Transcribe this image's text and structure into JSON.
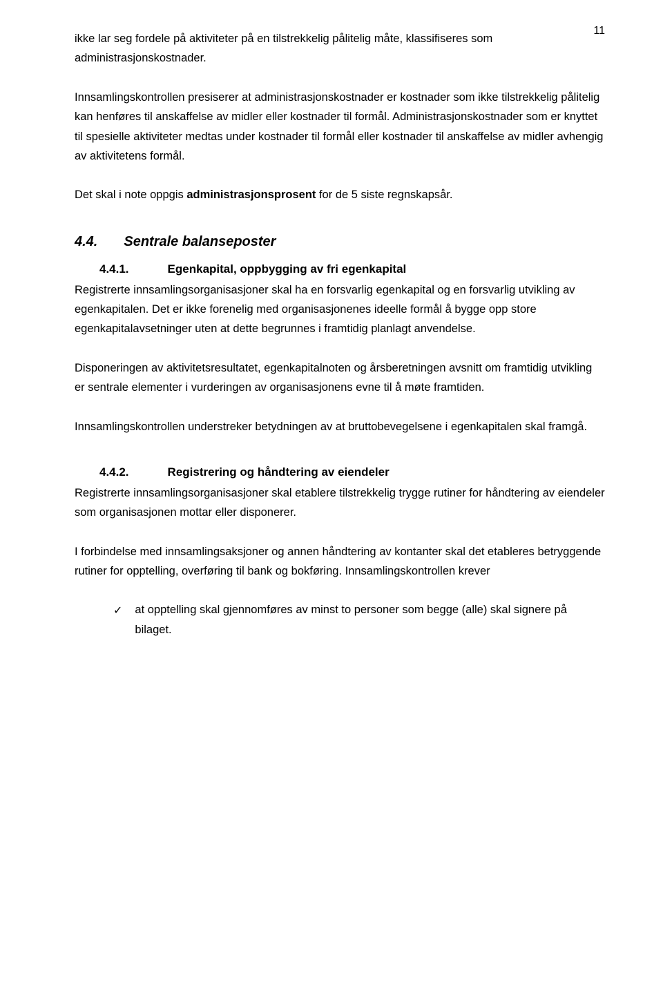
{
  "page_number": "11",
  "colors": {
    "text": "#000000",
    "background": "#ffffff"
  },
  "typography": {
    "body_size_pt": 12,
    "line_height": 1.72,
    "h_section_size_pt": 15,
    "h_sub_size_pt": 13
  },
  "p1": "ikke lar seg fordele på aktiviteter på en tilstrekkelig pålitelig måte, klassifiseres som administrasjonskostnader.",
  "p2": "Innsamlingskontrollen presiserer at administrasjonskostnader er kostnader som ikke tilstrekkelig pålitelig kan henføres til anskaffelse av midler eller kostnader til formål. Administrasjonskostnader som er knyttet til spesielle aktiviteter medtas under kostnader til formål eller kostnader til anskaffelse av midler avhengig av aktivitetens formål.",
  "p3a": "Det skal i note oppgis ",
  "p3b": "administrasjonsprosent",
  "p3c": " for de 5 siste regnskapsår.",
  "sec44_num": "4.4.",
  "sec44_title": "Sentrale balanseposter",
  "sec441_num": "4.4.1.",
  "sec441_title": "Egenkapital, oppbygging av fri egenkapital",
  "p4": "Registrerte innsamlingsorganisasjoner skal ha en forsvarlig egenkapital og en forsvarlig utvikling av egenkapitalen. Det er ikke forenelig med organisasjonenes ideelle formål å bygge opp store egenkapitalavsetninger uten at dette begrunnes i framtidig planlagt anvendelse.",
  "p5": "Disponeringen av aktivitetsresultatet, egenkapitalnoten og årsberetningen avsnitt om framtidig utvikling er sentrale elementer i vurderingen av organisasjonens evne til å møte framtiden.",
  "p6": "Innsamlingskontrollen understreker betydningen av at bruttobevegelsene i egenkapitalen skal framgå.",
  "sec442_num": "4.4.2.",
  "sec442_title": "Registrering og håndtering av eiendeler",
  "p7": "Registrerte innsamlingsorganisasjoner skal etablere tilstrekkelig trygge rutiner for håndtering av eiendeler som organisasjonen mottar eller disponerer.",
  "p8": "I forbindelse med innsamlingsaksjoner og annen håndtering av kontanter skal det etableres betryggende rutiner for opptelling, overføring til bank og bokføring. Innsamlingskontrollen krever",
  "bullet1": "at opptelling skal gjennomføres av minst to personer som begge (alle) skal signere på bilaget.",
  "check_glyph": "✓"
}
